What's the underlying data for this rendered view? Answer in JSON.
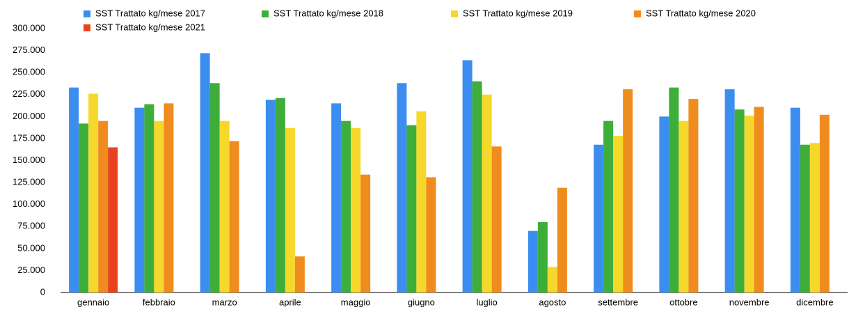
{
  "chart_data": {
    "type": "bar",
    "categories": [
      "gennaio",
      "febbraio",
      "marzo",
      "aprile",
      "maggio",
      "giugno",
      "luglio",
      "agosto",
      "settembre",
      "ottobre",
      "novembre",
      "dicembre"
    ],
    "series": [
      {
        "name": "SST Trattato kg/mese 2017",
        "color": "#3b8ef0",
        "values": [
          233000,
          210000,
          272000,
          219000,
          215000,
          238000,
          264000,
          70000,
          168000,
          200000,
          231000,
          210000
        ]
      },
      {
        "name": "SST Trattato kg/mese 2018",
        "color": "#3eae3a",
        "values": [
          192000,
          214000,
          238000,
          221000,
          195000,
          190000,
          240000,
          80000,
          195000,
          233000,
          208000,
          168000
        ]
      },
      {
        "name": "SST Trattato kg/mese 2019",
        "color": "#f6d82c",
        "values": [
          226000,
          195000,
          195000,
          187000,
          187000,
          206000,
          225000,
          29000,
          178000,
          195000,
          201000,
          170000
        ]
      },
      {
        "name": "SST Trattato kg/mese 2020",
        "color": "#f08c1e",
        "values": [
          195000,
          215000,
          172000,
          41000,
          134000,
          131000,
          166000,
          119000,
          231000,
          220000,
          211000,
          202000
        ]
      },
      {
        "name": "SST Trattato kg/mese 2021",
        "color": "#e8431c",
        "values": [
          165000,
          null,
          null,
          null,
          null,
          null,
          null,
          null,
          null,
          null,
          null,
          null
        ]
      }
    ],
    "ylim": [
      0,
      300000
    ],
    "yticks": [
      0,
      {
        "value": 25000,
        "label": "25.000"
      },
      {
        "value": 50000,
        "label": "50.000"
      },
      {
        "value": 75000,
        "label": "75.000"
      },
      {
        "value": 100000,
        "label": "100.000"
      },
      {
        "value": 125000,
        "label": "125.000"
      },
      {
        "value": 150000,
        "label": "150.000"
      },
      {
        "value": 175000,
        "label": "175.000"
      },
      {
        "value": 200000,
        "label": "200.000"
      },
      {
        "value": 225000,
        "label": "225.000"
      },
      {
        "value": 250000,
        "label": "250.000"
      },
      {
        "value": 275000,
        "label": "275.000"
      },
      {
        "value": 300000,
        "label": "300.000"
      }
    ],
    "grid": false,
    "legend": "top"
  }
}
